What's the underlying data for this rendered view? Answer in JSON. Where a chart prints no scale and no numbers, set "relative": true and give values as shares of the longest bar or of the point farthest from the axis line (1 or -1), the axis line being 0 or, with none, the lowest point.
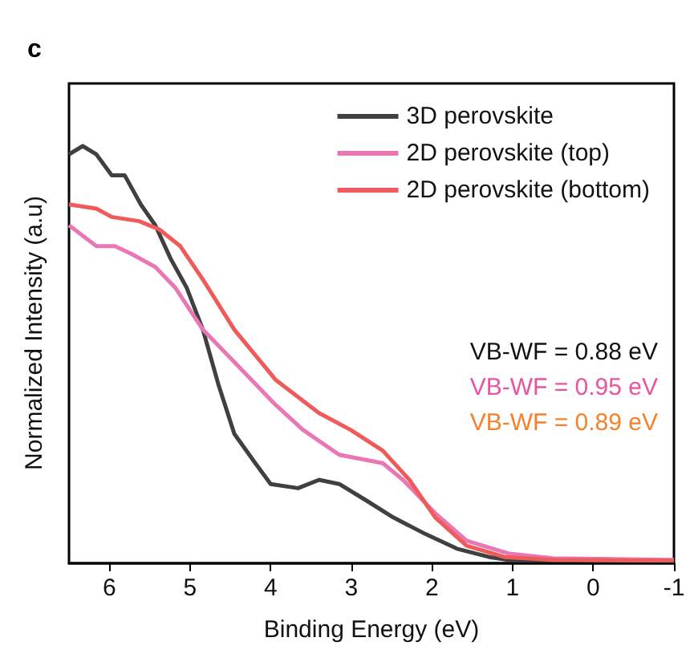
{
  "chart_data": {
    "type": "line",
    "title": "c",
    "xlabel": "Binding Energy (eV)",
    "ylabel": "Normalized Intensity (a.u)",
    "relative": true,
    "xlim": [
      6.5,
      -1
    ],
    "xticks": [
      6,
      5,
      4,
      3,
      2,
      1,
      0,
      -1
    ],
    "legend": "top right",
    "grid": false,
    "annotations": [
      "VB-WF = 0.88 eV",
      "VB-WF = 0.95 eV",
      "VB-WF = 0.89 eV"
    ],
    "series": [
      {
        "name": "3D perovskite",
        "color": "#404040",
        "x": [
          6.5,
          6.33,
          6.16,
          5.97,
          5.81,
          5.61,
          5.43,
          5.24,
          5.04,
          4.84,
          4.65,
          4.45,
          4.19,
          4.0,
          3.66,
          3.4,
          3.15,
          2.81,
          2.48,
          2.08,
          1.69,
          1.29,
          0.9,
          0,
          -1
        ],
        "values": [
          0.98,
          1.0,
          0.98,
          0.93,
          0.93,
          0.86,
          0.81,
          0.73,
          0.66,
          0.56,
          0.43,
          0.31,
          0.24,
          0.19,
          0.18,
          0.2,
          0.19,
          0.15,
          0.11,
          0.07,
          0.035,
          0.015,
          0.004,
          0.003,
          0.003
        ]
      },
      {
        "name": "2D perovskite (top)",
        "color": "#e877b4",
        "x": [
          6.5,
          6.16,
          5.93,
          5.71,
          5.43,
          5.18,
          4.84,
          4.39,
          3.94,
          3.6,
          3.15,
          2.61,
          2.36,
          1.96,
          1.57,
          1.04,
          0.5,
          -1
        ],
        "values": [
          0.81,
          0.76,
          0.76,
          0.74,
          0.71,
          0.66,
          0.56,
          0.47,
          0.38,
          0.32,
          0.26,
          0.24,
          0.2,
          0.12,
          0.054,
          0.023,
          0.012,
          0.008
        ]
      },
      {
        "name": "2D perovskite (bottom)",
        "color": "#ef5a5a",
        "x": [
          6.5,
          6.16,
          5.97,
          5.63,
          5.38,
          5.12,
          4.84,
          4.45,
          3.94,
          3.4,
          3.01,
          2.61,
          2.28,
          1.96,
          1.57,
          1.1,
          0.5,
          -1
        ],
        "values": [
          0.86,
          0.85,
          0.83,
          0.82,
          0.8,
          0.76,
          0.68,
          0.56,
          0.44,
          0.36,
          0.32,
          0.27,
          0.2,
          0.11,
          0.042,
          0.015,
          0.008,
          0.006
        ]
      },
      {
        "color": "#000000",
        "x": [
          1.65,
          -1
        ],
        "values": [
          0,
          0
        ]
      }
    ]
  }
}
